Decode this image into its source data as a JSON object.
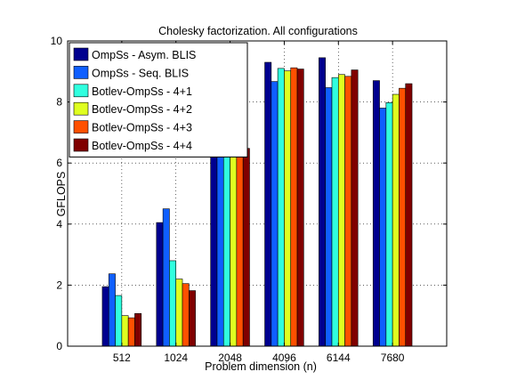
{
  "chart_data": {
    "type": "bar",
    "title": "Cholesky factorization. All configurations",
    "xlabel": "Problem dimension (n)",
    "ylabel": "GFLOPS",
    "ylim": [
      0,
      10
    ],
    "yticks": [
      "0",
      "2",
      "4",
      "6",
      "8",
      "10"
    ],
    "grid": true,
    "legend_position": "top-left",
    "categories": [
      "512",
      "1024",
      "2048",
      "4096",
      "6144",
      "7680"
    ],
    "series": [
      {
        "name": "OmpSs - Asym. BLIS",
        "color": "#00008f",
        "values": [
          1.95,
          4.05,
          6.9,
          9.3,
          9.45,
          8.7
        ]
      },
      {
        "name": "OmpSs - Seq. BLIS",
        "color": "#0f5fff",
        "values": [
          2.37,
          4.5,
          7.18,
          8.67,
          8.47,
          7.8
        ]
      },
      {
        "name": "Botlev-OmpSs - 4+1",
        "color": "#30ffdf",
        "values": [
          1.66,
          2.8,
          7.12,
          9.1,
          8.8,
          7.98
        ]
      },
      {
        "name": "Botlev-OmpSs - 4+2",
        "color": "#dfff20",
        "values": [
          1.0,
          2.2,
          6.97,
          9.02,
          8.9,
          8.25
        ]
      },
      {
        "name": "Botlev-OmpSs - 4+3",
        "color": "#ff5000",
        "values": [
          0.93,
          2.05,
          6.94,
          9.12,
          8.84,
          8.45
        ]
      },
      {
        "name": "Botlev-OmpSs - 4+4",
        "color": "#800000",
        "values": [
          1.07,
          1.82,
          6.48,
          9.08,
          9.05,
          8.6
        ]
      }
    ]
  }
}
